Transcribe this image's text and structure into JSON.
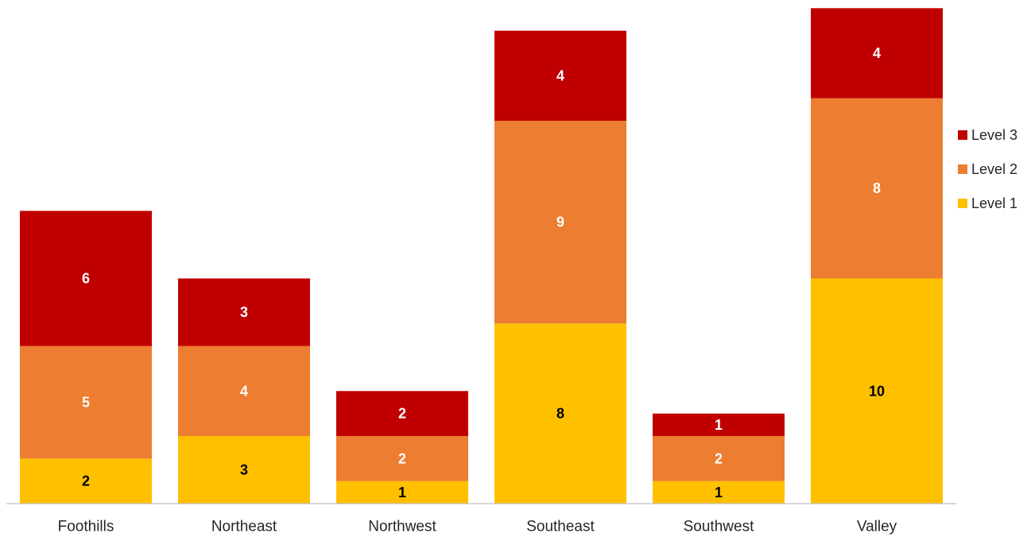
{
  "chart_data": {
    "type": "bar",
    "stacked": true,
    "title": "",
    "xlabel": "",
    "ylabel": "",
    "categories": [
      "Foothills",
      "Northeast",
      "Northwest",
      "Southeast",
      "Southwest",
      "Valley"
    ],
    "series": [
      {
        "name": "Level 1",
        "color": "#FFC000",
        "label_color": "#000000",
        "values": [
          2,
          3,
          1,
          8,
          1,
          10
        ]
      },
      {
        "name": "Level 2",
        "color": "#ED7D31",
        "label_color": "#FFFFFF",
        "values": [
          5,
          4,
          2,
          9,
          2,
          8
        ]
      },
      {
        "name": "Level 3",
        "color": "#C00000",
        "label_color": "#FFFFFF",
        "values": [
          6,
          3,
          2,
          4,
          1,
          4
        ]
      }
    ],
    "ylim": [
      0,
      22
    ],
    "grid": false,
    "y_axis_visible": false,
    "data_labels": true,
    "legend": {
      "position": "right",
      "order": [
        "Level 3",
        "Level 2",
        "Level 1"
      ]
    }
  }
}
